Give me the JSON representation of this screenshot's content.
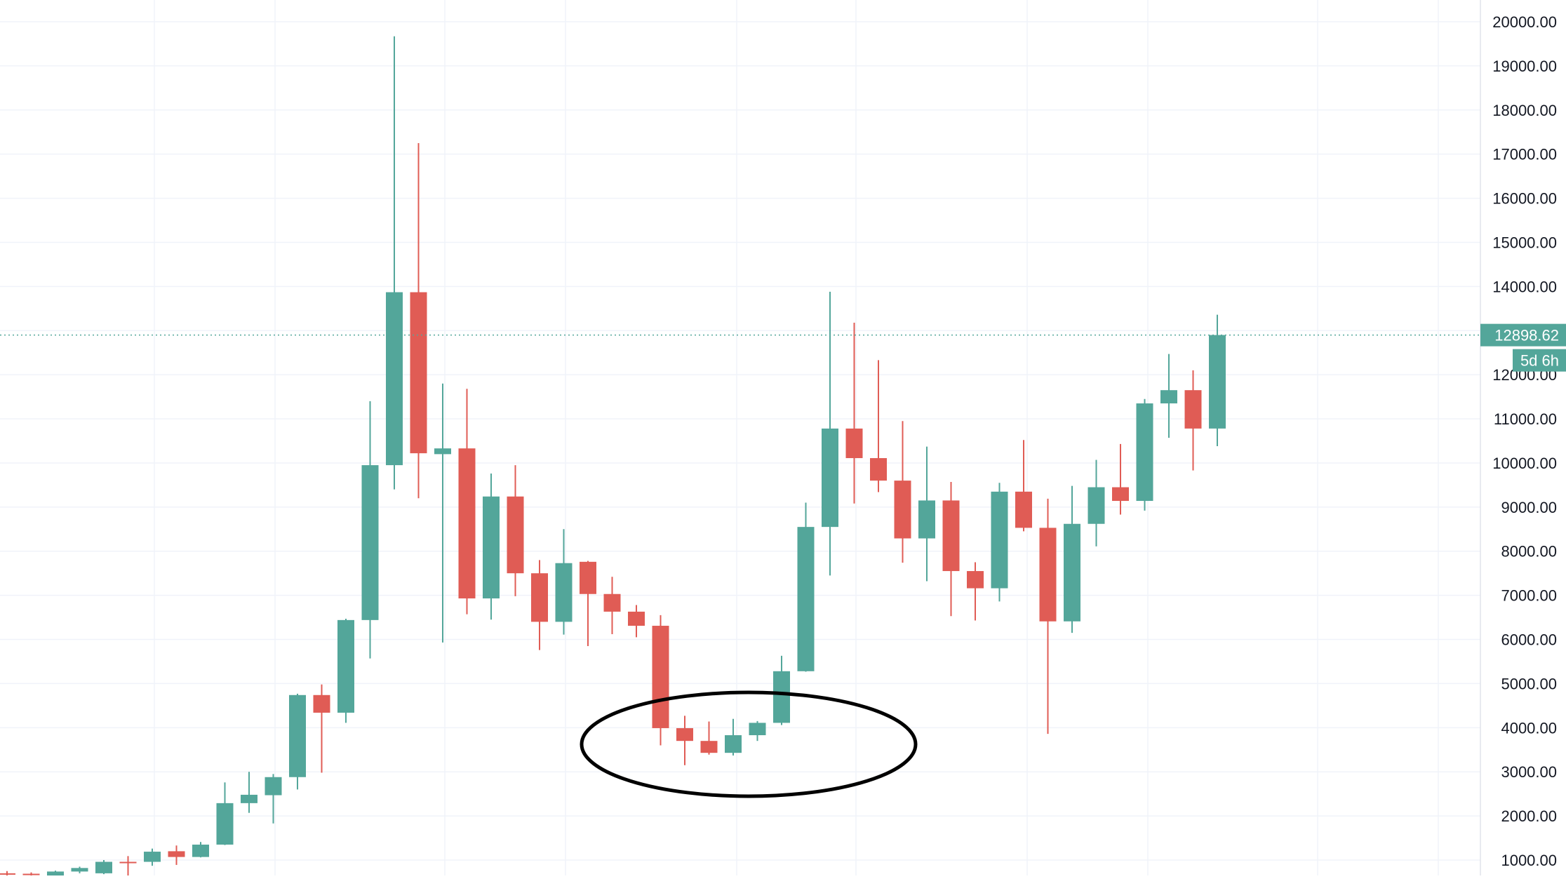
{
  "chart_data": {
    "type": "candlestick",
    "instrument_note": "",
    "ylim": [
      700,
      20350
    ],
    "y_ticks": [
      "1000.00",
      "2000.00",
      "3000.00",
      "4000.00",
      "5000.00",
      "6000.00",
      "7000.00",
      "8000.00",
      "9000.00",
      "10000.00",
      "11000.00",
      "12000.00",
      "13000.00",
      "14000.00",
      "15000.00",
      "16000.00",
      "17000.00",
      "18000.00",
      "19000.00",
      "20000.00"
    ],
    "last_price": 12898.62,
    "last_price_label": "12898.62",
    "countdown_label": "5d 6h",
    "grid": true,
    "colors": {
      "up": "#53a69a",
      "down": "#e05c55",
      "grid": "#f0f3fa",
      "axis_text": "#131722",
      "price_line": "#53a69a",
      "annotation": "#000000"
    },
    "candles": [
      {
        "o": 700,
        "h": 750,
        "l": 640,
        "c": 690
      },
      {
        "o": 690,
        "h": 720,
        "l": 650,
        "c": 670
      },
      {
        "o": 650,
        "h": 760,
        "l": 620,
        "c": 740
      },
      {
        "o": 740,
        "h": 850,
        "l": 700,
        "c": 820
      },
      {
        "o": 700,
        "h": 1000,
        "l": 680,
        "c": 960
      },
      {
        "o": 960,
        "h": 1090,
        "l": 650,
        "c": 930
      },
      {
        "o": 960,
        "h": 1260,
        "l": 870,
        "c": 1190
      },
      {
        "o": 1200,
        "h": 1330,
        "l": 890,
        "c": 1070
      },
      {
        "o": 1070,
        "h": 1410,
        "l": 1060,
        "c": 1350
      },
      {
        "o": 1350,
        "h": 2760,
        "l": 1340,
        "c": 2290
      },
      {
        "o": 2290,
        "h": 3000,
        "l": 2070,
        "c": 2480
      },
      {
        "o": 2470,
        "h": 2950,
        "l": 1830,
        "c": 2880
      },
      {
        "o": 2880,
        "h": 4770,
        "l": 2600,
        "c": 4740
      },
      {
        "o": 4740,
        "h": 4980,
        "l": 2980,
        "c": 4340
      },
      {
        "o": 4340,
        "h": 6470,
        "l": 4110,
        "c": 6440
      },
      {
        "o": 6440,
        "h": 11400,
        "l": 5570,
        "c": 9950
      },
      {
        "o": 9950,
        "h": 19670,
        "l": 9400,
        "c": 13870
      },
      {
        "o": 13870,
        "h": 17250,
        "l": 9200,
        "c": 10220
      },
      {
        "o": 10200,
        "h": 11800,
        "l": 5930,
        "c": 10330
      },
      {
        "o": 10330,
        "h": 11680,
        "l": 6570,
        "c": 6930
      },
      {
        "o": 6930,
        "h": 9760,
        "l": 6450,
        "c": 9240
      },
      {
        "o": 9240,
        "h": 9950,
        "l": 6980,
        "c": 7500
      },
      {
        "o": 7500,
        "h": 7800,
        "l": 5760,
        "c": 6400
      },
      {
        "o": 6400,
        "h": 8500,
        "l": 6110,
        "c": 7730
      },
      {
        "o": 7760,
        "h": 7780,
        "l": 5850,
        "c": 7030
      },
      {
        "o": 7030,
        "h": 7420,
        "l": 6120,
        "c": 6630
      },
      {
        "o": 6630,
        "h": 6780,
        "l": 6050,
        "c": 6310
      },
      {
        "o": 6310,
        "h": 6550,
        "l": 3600,
        "c": 3990
      },
      {
        "o": 3990,
        "h": 4270,
        "l": 3150,
        "c": 3700
      },
      {
        "o": 3700,
        "h": 4140,
        "l": 3390,
        "c": 3430
      },
      {
        "o": 3430,
        "h": 4200,
        "l": 3370,
        "c": 3830
      },
      {
        "o": 3830,
        "h": 4150,
        "l": 3700,
        "c": 4110
      },
      {
        "o": 4110,
        "h": 5630,
        "l": 4060,
        "c": 5280
      },
      {
        "o": 5280,
        "h": 9100,
        "l": 5270,
        "c": 8550
      },
      {
        "o": 8550,
        "h": 13880,
        "l": 7450,
        "c": 10780
      },
      {
        "o": 10780,
        "h": 13180,
        "l": 9080,
        "c": 10110
      },
      {
        "o": 10110,
        "h": 12330,
        "l": 9340,
        "c": 9600
      },
      {
        "o": 9600,
        "h": 10950,
        "l": 7740,
        "c": 8290
      },
      {
        "o": 8290,
        "h": 10370,
        "l": 7320,
        "c": 9150
      },
      {
        "o": 9150,
        "h": 9570,
        "l": 6530,
        "c": 7550
      },
      {
        "o": 7550,
        "h": 7750,
        "l": 6430,
        "c": 7160
      },
      {
        "o": 7160,
        "h": 9550,
        "l": 6860,
        "c": 9350
      },
      {
        "o": 9350,
        "h": 10520,
        "l": 8450,
        "c": 8530
      },
      {
        "o": 8530,
        "h": 9190,
        "l": 3860,
        "c": 6410
      },
      {
        "o": 6410,
        "h": 9480,
        "l": 6150,
        "c": 8620
      },
      {
        "o": 8620,
        "h": 10070,
        "l": 8110,
        "c": 9450
      },
      {
        "o": 9450,
        "h": 10430,
        "l": 8830,
        "c": 9140
      },
      {
        "o": 9140,
        "h": 11450,
        "l": 8920,
        "c": 11350
      },
      {
        "o": 11350,
        "h": 12470,
        "l": 10570,
        "c": 11650
      },
      {
        "o": 11650,
        "h": 12100,
        "l": 9830,
        "c": 10780
      },
      {
        "o": 10780,
        "h": 13360,
        "l": 10380,
        "c": 12900
      }
    ]
  }
}
